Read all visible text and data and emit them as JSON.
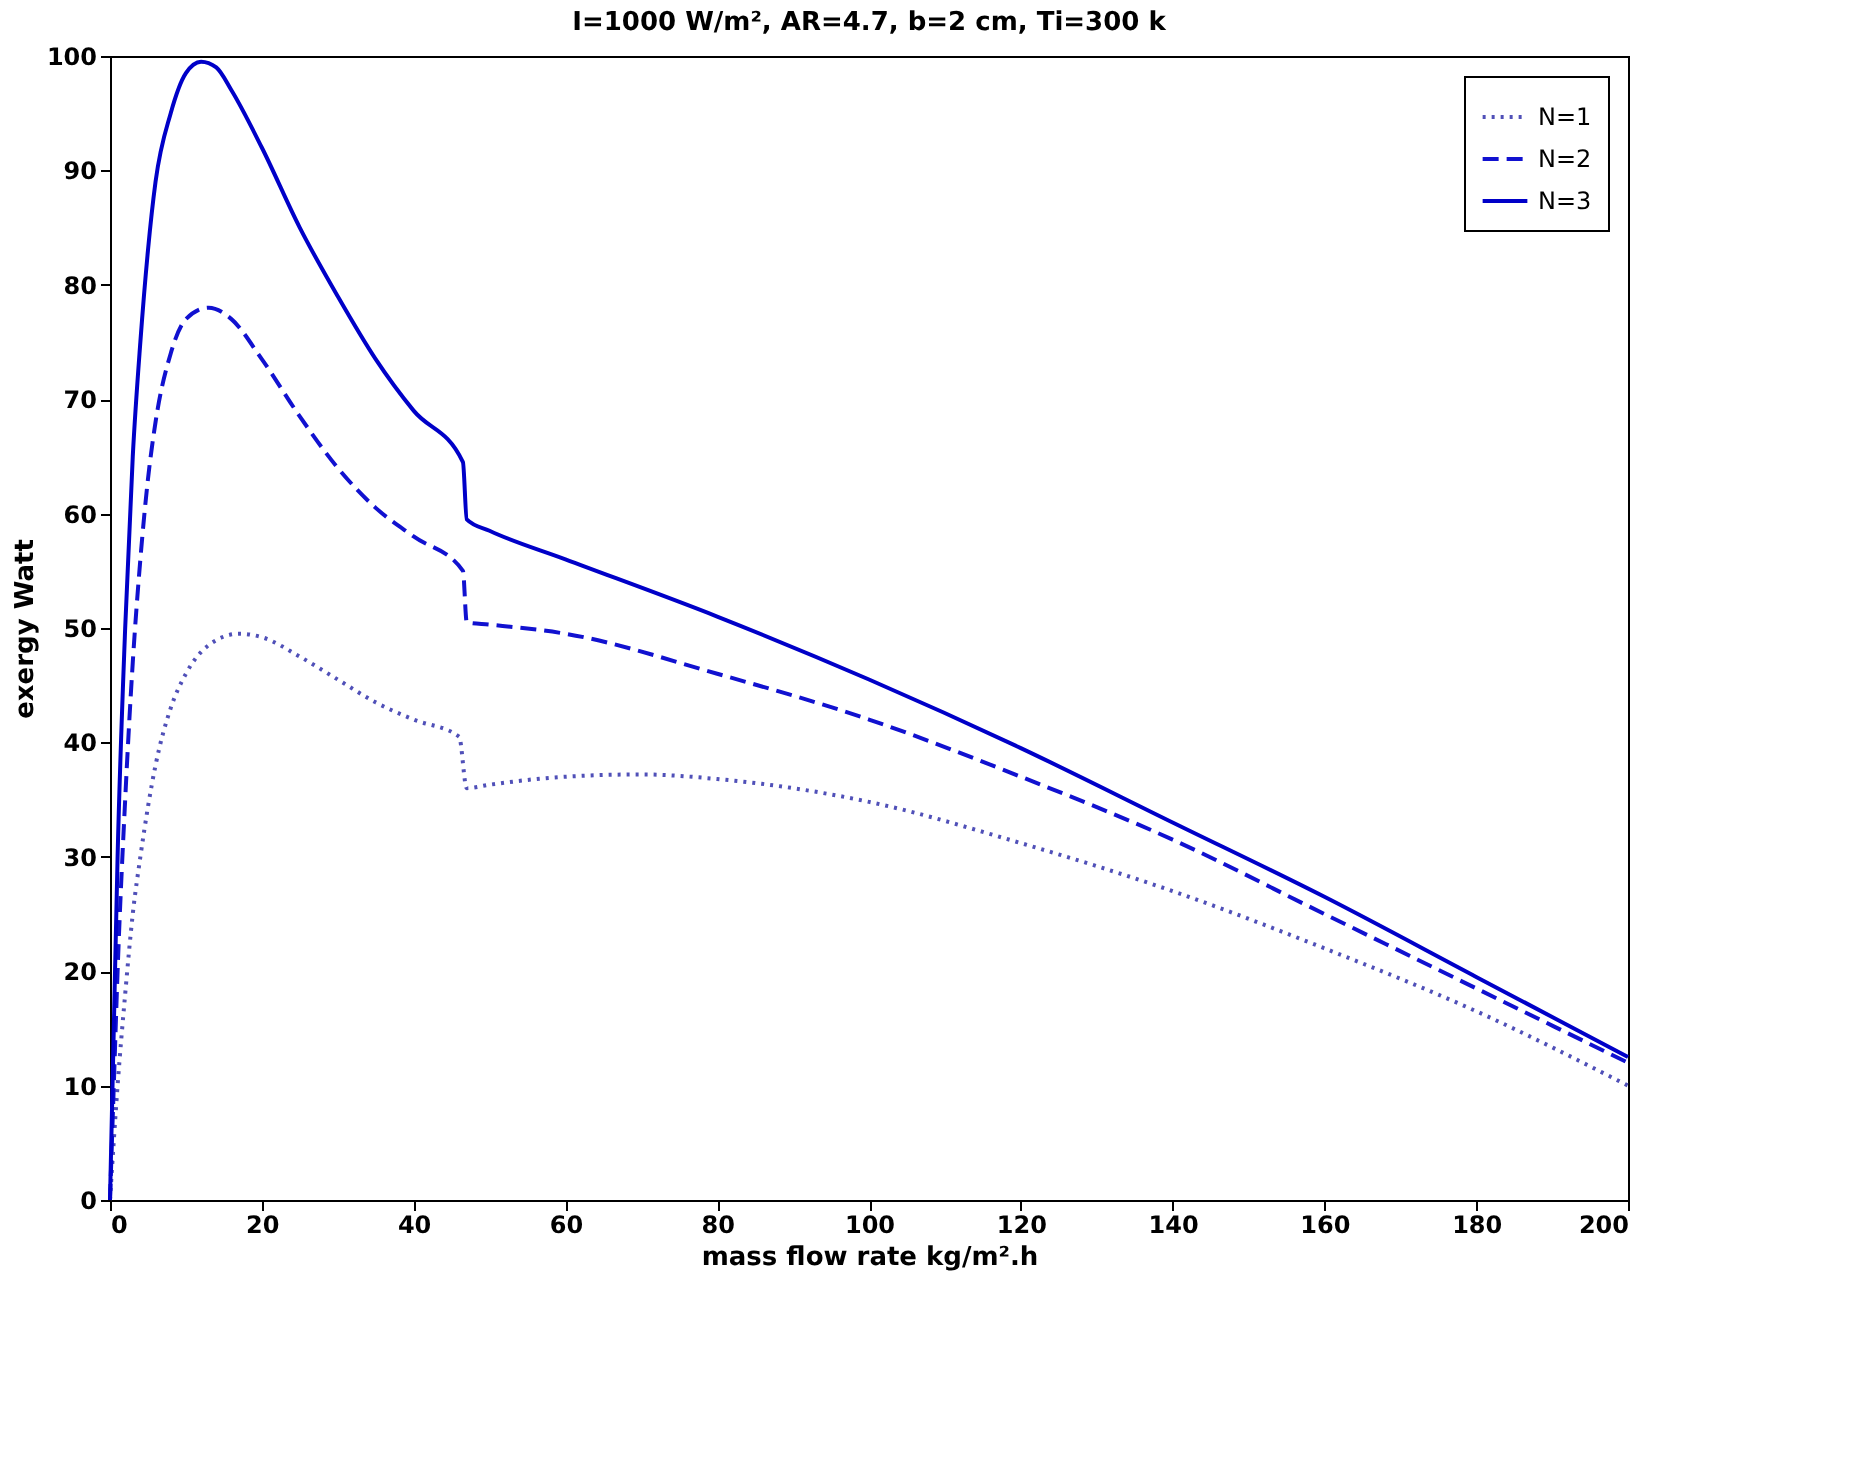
{
  "chart_data": {
    "type": "line",
    "title": "I=1000 W/m², AR=4.7, b=2 cm, Ti=300 k",
    "xlabel": "mass flow rate kg/m².h",
    "ylabel": "exergy Watt",
    "xlim": [
      0,
      200
    ],
    "xticks": [
      0,
      20,
      40,
      60,
      80,
      100,
      120,
      140,
      160,
      180,
      200
    ],
    "ylim": [
      0,
      100
    ],
    "yticks": [
      0,
      10,
      20,
      30,
      40,
      50,
      60,
      70,
      80,
      90,
      100
    ],
    "grid": false,
    "legend": "top right",
    "marker": "none",
    "series": [
      {
        "name": "N=1",
        "color": "#5050b8",
        "line_style": "dotted",
        "x": [
          0,
          1,
          2,
          3,
          4,
          6,
          8,
          10,
          13,
          17,
          20,
          25,
          30,
          35,
          40,
          46,
          47,
          50,
          60,
          70,
          80,
          100,
          120,
          140,
          160,
          180,
          200
        ],
        "values": [
          0,
          10,
          18,
          25,
          30,
          38,
          43,
          46,
          48.5,
          49.5,
          49.2,
          47.5,
          45.5,
          43.5,
          42,
          40.5,
          36,
          36.3,
          37,
          37.2,
          36.8,
          34.8,
          31.2,
          27,
          22,
          16.5,
          10
        ]
      },
      {
        "name": "N=2",
        "color": "#1111d0",
        "line_style": "dashed",
        "x": [
          0,
          0.5,
          1,
          2,
          3,
          4,
          5,
          6,
          8,
          10,
          13,
          16,
          20,
          25,
          30,
          35,
          40,
          46.5,
          47,
          50,
          60,
          80,
          100,
          120,
          140,
          160,
          180,
          200
        ],
        "values": [
          0,
          10,
          20,
          35,
          47,
          56,
          63,
          68,
          74,
          77,
          78,
          77,
          73.5,
          68.5,
          64,
          60.5,
          58,
          55,
          50.5,
          50.3,
          49.5,
          46,
          42,
          37,
          31.5,
          25,
          18.5,
          12
        ]
      },
      {
        "name": "N=3",
        "color": "#0000c8",
        "line_style": "solid",
        "x": [
          0,
          0.5,
          1,
          2,
          3,
          4,
          5,
          6,
          8,
          10,
          12,
          14,
          16,
          20,
          25,
          30,
          35,
          40,
          46.5,
          47,
          50,
          60,
          80,
          100,
          120,
          140,
          160,
          180,
          200
        ],
        "values": [
          0,
          15,
          30,
          50,
          65,
          75,
          83,
          89,
          95,
          98.5,
          99.5,
          99,
          97,
          92,
          85,
          79,
          73.5,
          69,
          64.5,
          59.5,
          58.5,
          56,
          51,
          45.5,
          39.5,
          33,
          26.5,
          19.5,
          12.5
        ]
      }
    ]
  }
}
